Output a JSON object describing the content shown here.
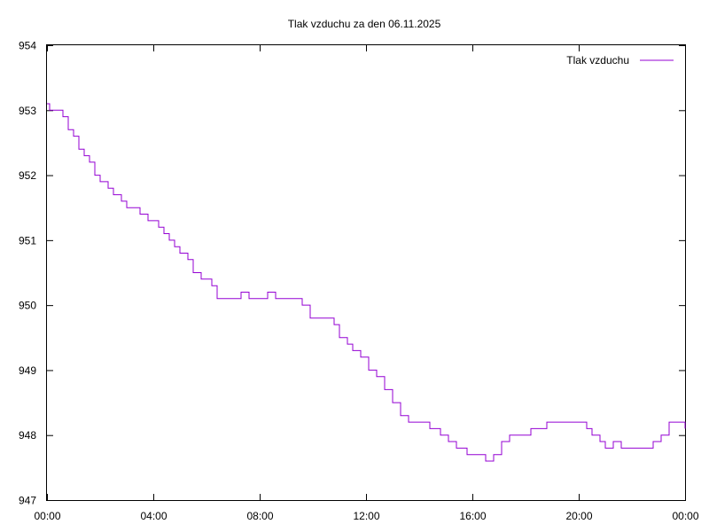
{
  "chart_data": {
    "type": "line",
    "title": "Tlak vzduchu za den 06.11.2025",
    "xlabel": "",
    "ylabel": "",
    "legend_position": "top-right",
    "grid": false,
    "xlim": [
      "00:00",
      "24:00"
    ],
    "ylim": [
      947,
      954
    ],
    "x_ticks": [
      "00:00",
      "04:00",
      "08:00",
      "12:00",
      "16:00",
      "20:00",
      "00:00"
    ],
    "y_ticks": [
      "947",
      "948",
      "949",
      "950",
      "951",
      "952",
      "953",
      "954"
    ],
    "series": [
      {
        "name": "Tlak vzduchu",
        "color": "#9400d3",
        "x_unit": "hours",
        "points": [
          [
            0.0,
            953.1
          ],
          [
            0.1,
            953.0
          ],
          [
            0.3,
            953.0
          ],
          [
            0.5,
            953.0
          ],
          [
            0.6,
            952.9
          ],
          [
            0.8,
            952.7
          ],
          [
            1.0,
            952.6
          ],
          [
            1.2,
            952.4
          ],
          [
            1.4,
            952.3
          ],
          [
            1.6,
            952.2
          ],
          [
            1.8,
            952.0
          ],
          [
            2.0,
            951.9
          ],
          [
            2.3,
            951.8
          ],
          [
            2.5,
            951.7
          ],
          [
            2.8,
            951.6
          ],
          [
            3.0,
            951.5
          ],
          [
            3.3,
            951.5
          ],
          [
            3.5,
            951.4
          ],
          [
            3.8,
            951.3
          ],
          [
            4.0,
            951.3
          ],
          [
            4.2,
            951.2
          ],
          [
            4.4,
            951.1
          ],
          [
            4.6,
            951.0
          ],
          [
            4.8,
            950.9
          ],
          [
            5.0,
            950.8
          ],
          [
            5.3,
            950.7
          ],
          [
            5.5,
            950.5
          ],
          [
            5.8,
            950.4
          ],
          [
            6.0,
            950.4
          ],
          [
            6.2,
            950.3
          ],
          [
            6.4,
            950.1
          ],
          [
            6.7,
            950.1
          ],
          [
            7.0,
            950.1
          ],
          [
            7.3,
            950.2
          ],
          [
            7.6,
            950.1
          ],
          [
            8.0,
            950.1
          ],
          [
            8.3,
            950.2
          ],
          [
            8.6,
            950.1
          ],
          [
            9.0,
            950.1
          ],
          [
            9.3,
            950.1
          ],
          [
            9.6,
            950.0
          ],
          [
            9.9,
            949.8
          ],
          [
            10.2,
            949.8
          ],
          [
            10.5,
            949.8
          ],
          [
            10.8,
            949.7
          ],
          [
            11.0,
            949.5
          ],
          [
            11.3,
            949.4
          ],
          [
            11.5,
            949.3
          ],
          [
            11.8,
            949.2
          ],
          [
            12.1,
            949.0
          ],
          [
            12.4,
            948.9
          ],
          [
            12.7,
            948.7
          ],
          [
            13.0,
            948.5
          ],
          [
            13.3,
            948.3
          ],
          [
            13.6,
            948.2
          ],
          [
            14.0,
            948.2
          ],
          [
            14.4,
            948.1
          ],
          [
            14.8,
            948.0
          ],
          [
            15.1,
            947.9
          ],
          [
            15.4,
            947.8
          ],
          [
            15.8,
            947.7
          ],
          [
            16.2,
            947.7
          ],
          [
            16.5,
            947.6
          ],
          [
            16.8,
            947.7
          ],
          [
            17.1,
            947.9
          ],
          [
            17.4,
            948.0
          ],
          [
            17.8,
            948.0
          ],
          [
            18.2,
            948.1
          ],
          [
            18.5,
            948.1
          ],
          [
            18.8,
            948.2
          ],
          [
            19.2,
            948.2
          ],
          [
            19.6,
            948.2
          ],
          [
            20.0,
            948.2
          ],
          [
            20.3,
            948.1
          ],
          [
            20.5,
            948.0
          ],
          [
            20.8,
            947.9
          ],
          [
            21.0,
            947.8
          ],
          [
            21.3,
            947.9
          ],
          [
            21.6,
            947.8
          ],
          [
            22.0,
            947.8
          ],
          [
            22.4,
            947.8
          ],
          [
            22.8,
            947.9
          ],
          [
            23.1,
            948.0
          ],
          [
            23.4,
            948.2
          ],
          [
            23.6,
            948.2
          ],
          [
            23.8,
            948.2
          ],
          [
            24.0,
            948.1
          ]
        ]
      }
    ]
  }
}
